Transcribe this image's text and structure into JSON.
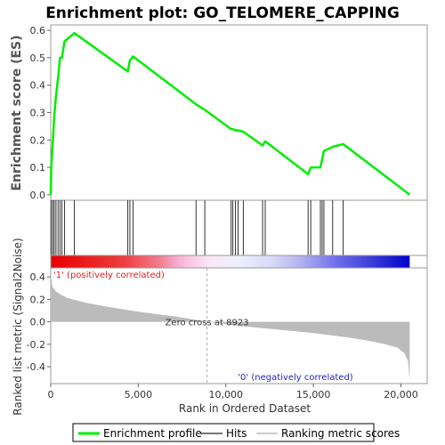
{
  "chart_data": {
    "type": "line",
    "title": "Enrichment plot: GO_TELOMERE_CAPPING",
    "ylabel_top": "Enrichment score (ES)",
    "ylabel_bottom": "Ranked list metric (Signal2Noise)",
    "xlabel": "Rank in Ordered Dataset",
    "xlim": [
      0,
      21500
    ],
    "ylim_top": [
      -0.02,
      0.62
    ],
    "ylim_bottom": [
      -0.55,
      0.48
    ],
    "x_ticks": [
      0,
      5000,
      10000,
      15000,
      20000
    ],
    "x_tick_labels": [
      "0",
      "5,000",
      "10,000",
      "15,000",
      "20,000"
    ],
    "y_ticks_top": [
      0.0,
      0.1,
      0.2,
      0.3,
      0.4,
      0.5,
      0.6
    ],
    "y_tick_labels_top": [
      "0.0",
      "0.1",
      "0.2",
      "0.3",
      "0.4",
      "0.5",
      "0.6"
    ],
    "y_ticks_bottom": [
      -0.4,
      -0.2,
      0.0,
      0.2,
      0.4
    ],
    "y_tick_labels_bottom": [
      "-0.4",
      "-0.2",
      "0.0",
      "0.2",
      "0.4"
    ],
    "positive_label": "'1' (positively correlated)",
    "negative_label": "'0' (negatively correlated)",
    "zero_cross_label": "Zero cross at 8923",
    "zero_cross": 8923,
    "n_genes": 20500,
    "hits": [
      30,
      120,
      200,
      300,
      420,
      530,
      640,
      790,
      1350,
      4400,
      4520,
      4700,
      8300,
      8800,
      10300,
      10400,
      10550,
      10700,
      11000,
      12100,
      12250,
      14700,
      14850,
      15400,
      15500,
      15600,
      16100,
      16700
    ],
    "es_profile": {
      "x": [
        0,
        30,
        120,
        200,
        300,
        420,
        530,
        640,
        790,
        1350,
        4400,
        4520,
        4700,
        8300,
        8800,
        10300,
        10400,
        10550,
        10700,
        11000,
        12100,
        12250,
        14700,
        14850,
        15400,
        15500,
        15600,
        16100,
        16700,
        20500
      ],
      "y": [
        0.0,
        0.105,
        0.195,
        0.285,
        0.36,
        0.43,
        0.5,
        0.5,
        0.56,
        0.59,
        0.45,
        0.49,
        0.505,
        0.33,
        0.31,
        0.24,
        0.24,
        0.235,
        0.235,
        0.23,
        0.18,
        0.195,
        0.075,
        0.1,
        0.1,
        0.13,
        0.16,
        0.175,
        0.185,
        0.0
      ]
    },
    "metric_curve": {
      "rank": [
        0,
        100,
        300,
        600,
        1000,
        2000,
        3000,
        4000,
        5000,
        6000,
        7000,
        8000,
        8923,
        10000,
        11000,
        12000,
        13000,
        14000,
        15000,
        16000,
        17000,
        18000,
        19000,
        19800,
        20200,
        20400,
        20500
      ],
      "value": [
        0.42,
        0.31,
        0.27,
        0.24,
        0.21,
        0.17,
        0.14,
        0.115,
        0.09,
        0.07,
        0.05,
        0.025,
        0.0,
        -0.02,
        -0.04,
        -0.055,
        -0.07,
        -0.085,
        -0.1,
        -0.12,
        -0.14,
        -0.165,
        -0.195,
        -0.23,
        -0.28,
        -0.35,
        -0.52
      ]
    },
    "series": [
      {
        "name": "Enrichment profile",
        "color": "#00ee00"
      },
      {
        "name": "Hits",
        "color": "#777777"
      },
      {
        "name": "Ranking metric scores",
        "color": "#cccccc"
      }
    ],
    "grid": false,
    "legend_placement": "bottom"
  }
}
